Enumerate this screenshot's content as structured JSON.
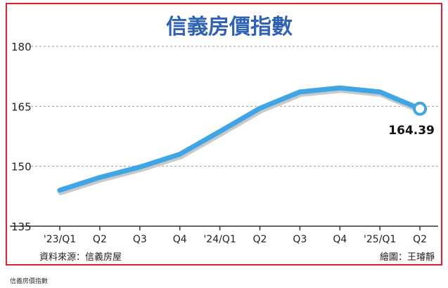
{
  "caption": "信義房價指數",
  "source": "資料來源：信義房屋",
  "credit": "繪圖：王璿靜",
  "colors": {
    "frame": "#e0202a",
    "title": "#2f62b5",
    "line": "#3fa6e6",
    "grid": "#9a9a9a",
    "axis": "#333333"
  },
  "chart_data": {
    "type": "line",
    "title": "信義房價指數",
    "categories": [
      "'23/Q1",
      "Q2",
      "Q3",
      "Q4",
      "'24/Q1",
      "Q2",
      "Q3",
      "Q4",
      "'25/Q1",
      "Q2"
    ],
    "series": [
      {
        "values": [
          144.0,
          147.2,
          149.8,
          153.0,
          158.7,
          164.5,
          168.6,
          169.6,
          168.6,
          164.39
        ]
      }
    ],
    "last_value_label": "164.39",
    "ylim": [
      135,
      180
    ],
    "yticks": [
      "180",
      "165",
      "150",
      "135"
    ],
    "grid": true,
    "xlabel": "",
    "ylabel": ""
  }
}
